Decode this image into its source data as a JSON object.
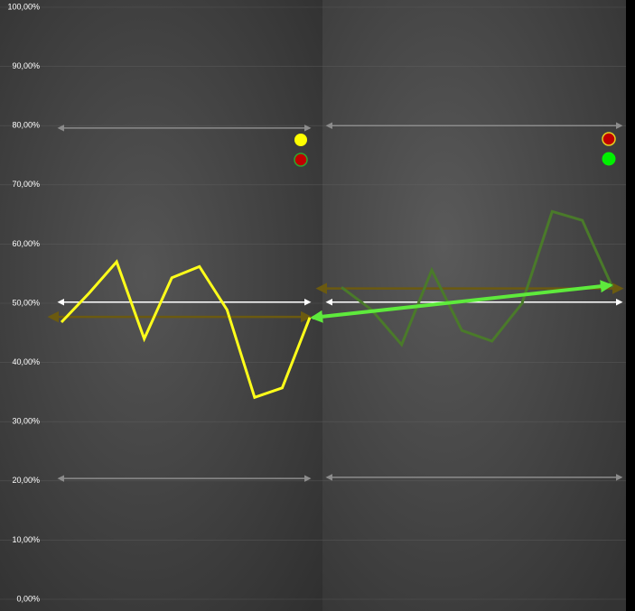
{
  "chart_data": {
    "type": "line",
    "ylim": [
      0,
      100
    ],
    "yticks": [
      {
        "value": 0,
        "label": "0,00%"
      },
      {
        "value": 10,
        "label": "10,00%"
      },
      {
        "value": 20,
        "label": "20,00%"
      },
      {
        "value": 30,
        "label": "30,00%"
      },
      {
        "value": 40,
        "label": "40,00%"
      },
      {
        "value": 50,
        "label": "50,00%"
      },
      {
        "value": 60,
        "label": "60,00%"
      },
      {
        "value": 70,
        "label": "70,00%"
      },
      {
        "value": 80,
        "label": "80,00%"
      },
      {
        "value": 90,
        "label": "90,00%"
      },
      {
        "value": 100,
        "label": "100,00%"
      }
    ],
    "grid": true,
    "panels": [
      {
        "categories": [
          null,
          null,
          null,
          null,
          null,
          null,
          null,
          null,
          null,
          null
        ],
        "series": [
          {
            "color": "#ffff1a",
            "values": [
              46.8,
              51.7,
              57.0,
              44.0,
              54.3,
              56.2,
              48.9,
              34.1,
              35.7,
              47.6
            ]
          }
        ],
        "reference_lines": [
          {
            "value": 79.6,
            "color": "#8c8c8c"
          },
          {
            "value": 50.2,
            "color": "#ffffff"
          },
          {
            "value": 47.7,
            "color": "#6b5a10"
          },
          {
            "value": 20.4,
            "color": "#8c8c8c"
          }
        ]
      },
      {
        "categories": [
          null,
          null,
          null,
          null,
          null,
          null,
          null,
          null,
          null,
          null
        ],
        "series": [
          {
            "color": "#4a7a2a",
            "values": [
              52.7,
              48.9,
              43.0,
              55.6,
              45.4,
              43.6,
              50.0,
              65.5,
              64.0,
              52.7
            ]
          }
        ],
        "reference_lines": [
          {
            "value": 80.0,
            "color": "#8c8c8c"
          },
          {
            "value": 52.5,
            "color": "#6b5a10"
          },
          {
            "value": 50.2,
            "color": "#ffffff"
          },
          {
            "value": 20.6,
            "color": "#8c8c8c"
          }
        ]
      }
    ]
  }
}
